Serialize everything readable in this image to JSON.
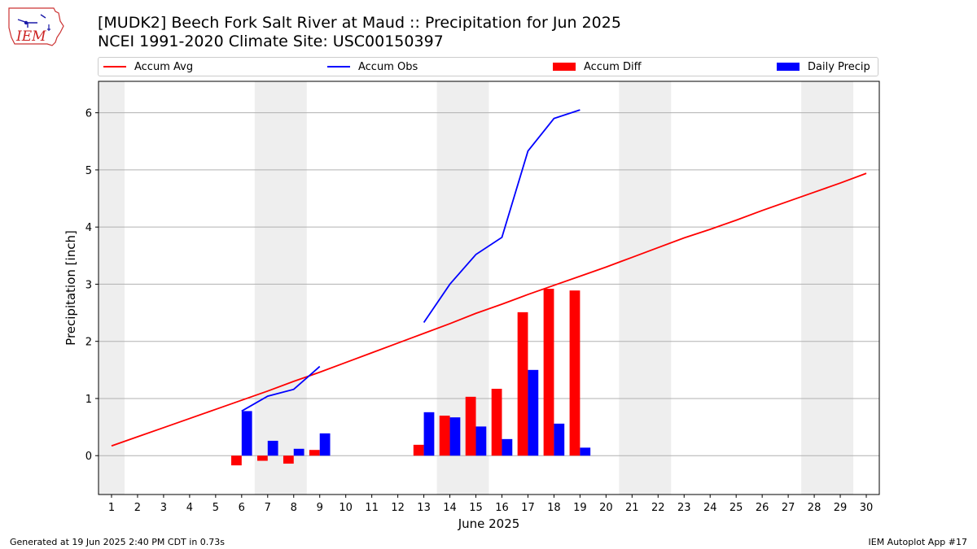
{
  "header": {
    "logo_text": "IEM",
    "title_line1": "[MUDK2] Beech Fork Salt River at Maud :: Precipitation for Jun 2025",
    "title_line2": "NCEI 1991-2020 Climate Site: USC00150397"
  },
  "legend": {
    "accum_avg": "Accum Avg",
    "accum_obs": "Accum Obs",
    "accum_diff": "Accum Diff",
    "daily_precip": "Daily Precip"
  },
  "colors": {
    "avg": "#ff0000",
    "obs": "#0000ff",
    "diff": "#ff0000",
    "daily": "#0000ff",
    "weekend": "#eeeeee",
    "grid": "#b0b0b0"
  },
  "footer": {
    "left": "Generated at 19 Jun 2025 2:40 PM CDT in 0.73s",
    "right": "IEM Autoplot App #17"
  },
  "chart_data": {
    "type": "bar",
    "xlabel": "June 2025",
    "ylabel": "Precipitation [inch]",
    "xlim": [
      0.5,
      30.5
    ],
    "ylim": [
      -0.68,
      6.55
    ],
    "x_ticks": [
      1,
      2,
      3,
      4,
      5,
      6,
      7,
      8,
      9,
      10,
      11,
      12,
      13,
      14,
      15,
      16,
      17,
      18,
      19,
      20,
      21,
      22,
      23,
      24,
      25,
      26,
      27,
      28,
      29,
      30
    ],
    "y_ticks": [
      0,
      1,
      2,
      3,
      4,
      5,
      6
    ],
    "grid": "horizontal",
    "weekend_bands": [
      [
        1,
        1
      ],
      [
        7,
        8
      ],
      [
        14,
        15
      ],
      [
        21,
        22
      ],
      [
        28,
        29
      ]
    ],
    "series": [
      {
        "name": "Accum Avg",
        "kind": "line",
        "x": [
          1,
          2,
          3,
          4,
          5,
          6,
          7,
          8,
          9,
          10,
          11,
          12,
          13,
          14,
          15,
          16,
          17,
          18,
          19,
          20,
          21,
          22,
          23,
          24,
          25,
          26,
          27,
          28,
          29,
          30
        ],
        "values": [
          0.17,
          0.33,
          0.49,
          0.65,
          0.81,
          0.97,
          1.13,
          1.3,
          1.46,
          1.63,
          1.8,
          1.97,
          2.14,
          2.31,
          2.49,
          2.65,
          2.82,
          2.98,
          3.14,
          3.3,
          3.47,
          3.64,
          3.81,
          3.96,
          4.12,
          4.29,
          4.45,
          4.61,
          4.77,
          4.94
        ]
      },
      {
        "name": "Accum Obs",
        "kind": "line",
        "segments": [
          {
            "x": [
              6,
              7,
              8,
              9
            ],
            "values": [
              0.78,
              1.04,
              1.16,
              1.56
            ]
          },
          {
            "x": [
              13,
              14,
              15,
              16,
              17,
              18,
              19
            ],
            "values": [
              2.33,
              3.0,
              3.52,
              3.82,
              5.33,
              5.9,
              6.05
            ]
          }
        ]
      },
      {
        "name": "Accum Diff",
        "kind": "bar",
        "x": [
          6,
          7,
          8,
          9,
          13,
          14,
          15,
          16,
          17,
          18,
          19
        ],
        "values": [
          -0.17,
          -0.09,
          -0.14,
          0.1,
          0.19,
          0.7,
          1.03,
          1.17,
          2.51,
          2.92,
          2.89
        ]
      },
      {
        "name": "Daily Precip",
        "kind": "bar",
        "x": [
          6,
          7,
          8,
          9,
          13,
          14,
          15,
          16,
          17,
          18,
          19
        ],
        "values": [
          0.78,
          0.26,
          0.12,
          0.39,
          0.76,
          0.67,
          0.51,
          0.29,
          1.5,
          0.56,
          0.14
        ]
      }
    ]
  }
}
